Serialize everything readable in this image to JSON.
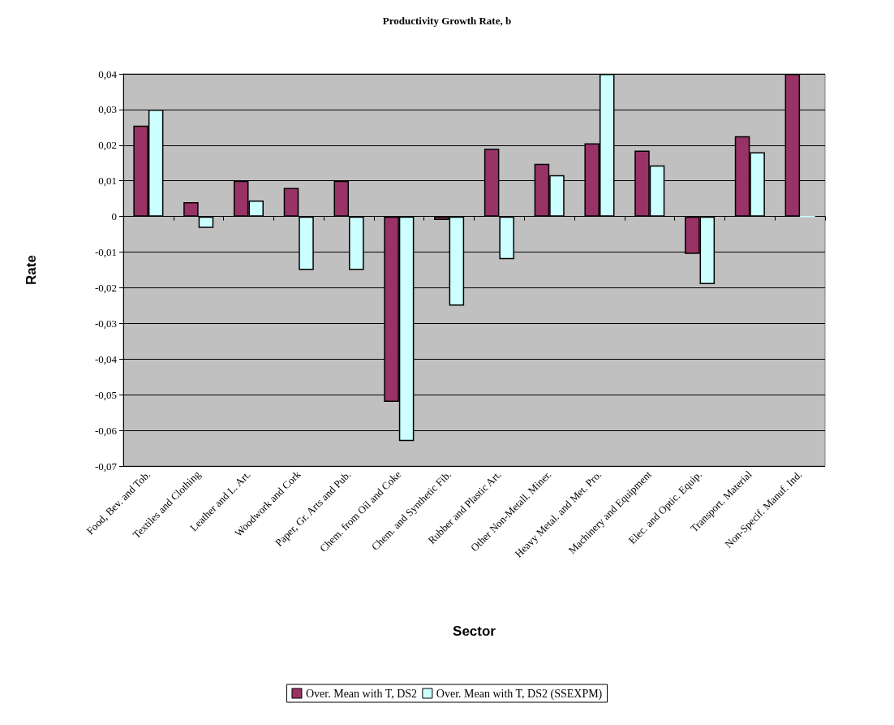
{
  "chart_data": {
    "type": "bar",
    "title": "Productivity Growth Rate, b",
    "xlabel": "Sector",
    "ylabel": "Rate",
    "categories": [
      "Food, Bev. and Tob.",
      "Textiles and Clothing",
      "Leather and L. Art.",
      "Woodwork and Cork",
      "Paper, Gr. Arts and Pub.",
      "Chem. from Oil and Coke",
      "Chem. and Synthetic Fib.",
      "Rubber and Plastic Art.",
      "Other Non-Metall. Miner.",
      "Heavy Metal. and Met. Pro.",
      "Machinery and Equipment",
      "Elec. and Optic. Equip.",
      "Transport. Material",
      "Non-Specif. Manuf. Ind."
    ],
    "series": [
      {
        "name": "Over. Mean with T, DS2",
        "color": "#993366",
        "values": [
          0.0255,
          0.004,
          0.01,
          0.008,
          0.01,
          -0.052,
          -0.001,
          0.019,
          0.0148,
          0.0205,
          0.0185,
          -0.0105,
          0.0225,
          0.04
        ]
      },
      {
        "name": "Over. Mean with T, DS2 (SSEXPM)",
        "color": "#ccffff",
        "values": [
          0.03,
          -0.0032,
          0.0045,
          -0.015,
          -0.015,
          -0.063,
          -0.025,
          -0.012,
          0.0116,
          0.04,
          0.0143,
          -0.019,
          0.018,
          0.0
        ]
      }
    ],
    "ylim": [
      -0.07,
      0.04
    ],
    "yticks": [
      {
        "value": -0.07,
        "label": "-0,07"
      },
      {
        "value": -0.06,
        "label": "-0,06"
      },
      {
        "value": -0.05,
        "label": "-0,05"
      },
      {
        "value": -0.04,
        "label": "-0,04"
      },
      {
        "value": -0.03,
        "label": "-0,03"
      },
      {
        "value": -0.02,
        "label": "-0,02"
      },
      {
        "value": -0.01,
        "label": "-0,01"
      },
      {
        "value": 0,
        "label": "0"
      },
      {
        "value": 0.01,
        "label": "0,01"
      },
      {
        "value": 0.02,
        "label": "0,02"
      },
      {
        "value": 0.03,
        "label": "0,03"
      },
      {
        "value": 0.04,
        "label": "0,04"
      }
    ],
    "grid": "y",
    "legend": "bottom"
  }
}
